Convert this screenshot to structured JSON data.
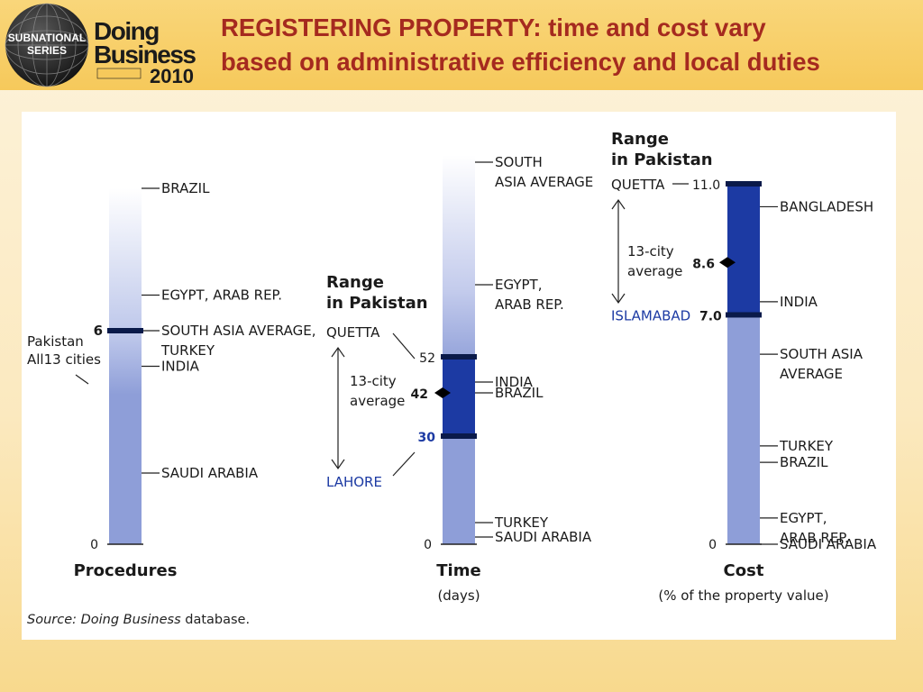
{
  "header": {
    "logo_top": "SUBNATIONAL",
    "logo_bottom": "SERIES",
    "logo_brand_1": "Doing",
    "logo_brand_2": "Business",
    "logo_year": "2010",
    "title_line1": "REGISTERING PROPERTY: time and cost vary",
    "title_line2": "based on administrative efficiency and local duties"
  },
  "colors": {
    "title": "#a52a1f",
    "bar_light": "#8e9ed8",
    "bar_dark": "#1c3aa3",
    "marker": "#0a1a4a",
    "pakistan_text": "#1c3aa3"
  },
  "chart_data": [
    {
      "type": "bar",
      "title": "Procedures",
      "subtitle": "",
      "ylim": [
        0,
        10
      ],
      "zero_label": "0",
      "entries": [
        {
          "label_lines": [
            "BRAZIL"
          ],
          "value": 10
        },
        {
          "label_lines": [
            "EGYPT, ARAB REP."
          ],
          "value": 7
        },
        {
          "label_lines": [
            "SOUTH ASIA AVERAGE,",
            "TURKEY"
          ],
          "value": 6
        },
        {
          "label_lines": [
            "INDIA"
          ],
          "value": 5
        },
        {
          "label_lines": [
            "SAUDI ARABIA"
          ],
          "value": 2
        }
      ],
      "pakistan": {
        "label_lines": [
          "Pakistan",
          "All13 cities"
        ],
        "value": 6,
        "value_label": "6"
      }
    },
    {
      "type": "bar",
      "title": "Time",
      "subtitle": "(days)",
      "ylim": [
        0,
        108
      ],
      "zero_label": "0",
      "entries": [
        {
          "label_lines": [
            "SOUTH",
            "ASIA AVERAGE"
          ],
          "value": 106
        },
        {
          "label_lines": [
            "EGYPT,",
            "ARAB REP."
          ],
          "value": 72
        },
        {
          "label_lines": [
            "INDIA"
          ],
          "value": 45
        },
        {
          "label_lines": [
            "BRAZIL"
          ],
          "value": 42
        },
        {
          "label_lines": [
            "TURKEY"
          ],
          "value": 6
        },
        {
          "label_lines": [
            "SAUDI ARABIA"
          ],
          "value": 2
        }
      ],
      "range": {
        "heading_lines": [
          "Range",
          "in Pakistan"
        ],
        "high": {
          "city": "QUETTA",
          "value": 52,
          "value_label": "52"
        },
        "low": {
          "city": "LAHORE",
          "value": 30,
          "value_label": "30"
        },
        "average": {
          "label_lines": [
            "13-city",
            "average"
          ],
          "value": 42,
          "value_label": "42"
        }
      }
    },
    {
      "type": "bar",
      "title": "Cost",
      "subtitle": "(% of the property value)",
      "ylim": [
        0,
        11.0
      ],
      "zero_label": "0",
      "entries": [
        {
          "label_lines": [
            "BANGLADESH"
          ],
          "value": 10.3
        },
        {
          "label_lines": [
            "INDIA"
          ],
          "value": 7.4
        },
        {
          "label_lines": [
            "SOUTH ASIA",
            "AVERAGE"
          ],
          "value": 5.8
        },
        {
          "label_lines": [
            "TURKEY"
          ],
          "value": 3.0
        },
        {
          "label_lines": [
            "BRAZIL"
          ],
          "value": 2.5
        },
        {
          "label_lines": [
            "EGYPT,",
            "ARAB REP."
          ],
          "value": 0.8
        },
        {
          "label_lines": [
            "SAUDI ARABIA"
          ],
          "value": 0
        }
      ],
      "range": {
        "heading_lines": [
          "Range",
          "in Pakistan"
        ],
        "high": {
          "city": "QUETTA",
          "value": 11.0,
          "value_label": "11.0"
        },
        "low": {
          "city": "ISLAMABAD",
          "value": 7.0,
          "value_label": "7.0"
        },
        "average": {
          "label_lines": [
            "13-city",
            "average"
          ],
          "value": 8.6,
          "value_label": "8.6"
        }
      }
    }
  ],
  "source": {
    "prefix": "Source: Doing Business",
    "suffix": " database."
  }
}
